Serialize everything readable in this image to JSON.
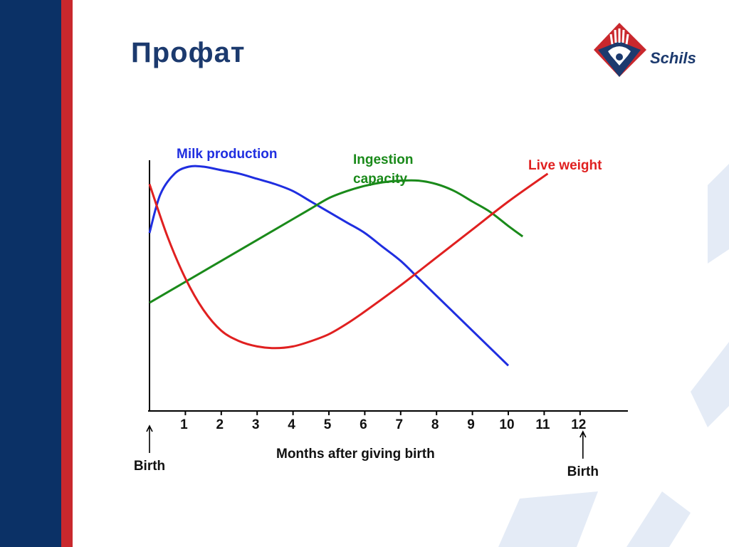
{
  "slide": {
    "title": "Профат",
    "logo_text": "Schils",
    "colors": {
      "band_blue": "#0b3166",
      "band_red": "#c9282d",
      "title": "#1c3a6e"
    }
  },
  "chart_data": {
    "type": "line",
    "title": "",
    "xlabel": "Months after giving birth",
    "ylabel": "",
    "xlim": [
      0,
      12
    ],
    "x_ticks": [
      1,
      2,
      3,
      4,
      5,
      6,
      7,
      8,
      9,
      10,
      11,
      12
    ],
    "grid": false,
    "annotations": [
      {
        "text": "Birth",
        "x": 0
      },
      {
        "text": "Birth",
        "x": 12
      }
    ],
    "series": [
      {
        "name": "Milk production",
        "color": "#1f2ee0",
        "x": [
          0,
          0.3,
          0.7,
          1.1,
          1.5,
          2,
          2.5,
          3,
          3.5,
          4,
          4.5,
          5,
          5.5,
          6,
          6.5,
          7,
          7.5,
          8,
          8.5,
          9,
          9.5,
          10
        ],
        "y": [
          51,
          62,
          68,
          70,
          70,
          69,
          68,
          66.5,
          65,
          63,
          60,
          57,
          54,
          51,
          47,
          43,
          38,
          33,
          28,
          23,
          18,
          13
        ]
      },
      {
        "name": "Ingestion capacity",
        "color": "#1a8a1a",
        "x": [
          0,
          1,
          2,
          3,
          4,
          4.5,
          5,
          5.5,
          6,
          6.5,
          7,
          7.5,
          8,
          8.5,
          9,
          9.5,
          10,
          10.4
        ],
        "y": [
          31,
          37,
          43,
          49,
          55,
          58,
          61,
          63,
          64.5,
          65.5,
          66,
          66,
          65,
          63,
          60,
          57,
          53,
          50
        ]
      },
      {
        "name": "Live weight",
        "color": "#e02020",
        "x": [
          0,
          0.5,
          1,
          1.5,
          2,
          2.5,
          3,
          3.5,
          4,
          4.5,
          5,
          5.5,
          6,
          7,
          8,
          9,
          10,
          11.1
        ],
        "y": [
          65,
          50,
          38,
          29,
          23,
          20,
          18.5,
          18,
          18.5,
          20,
          22,
          25,
          28.5,
          36,
          44,
          52,
          60,
          68
        ]
      }
    ]
  }
}
